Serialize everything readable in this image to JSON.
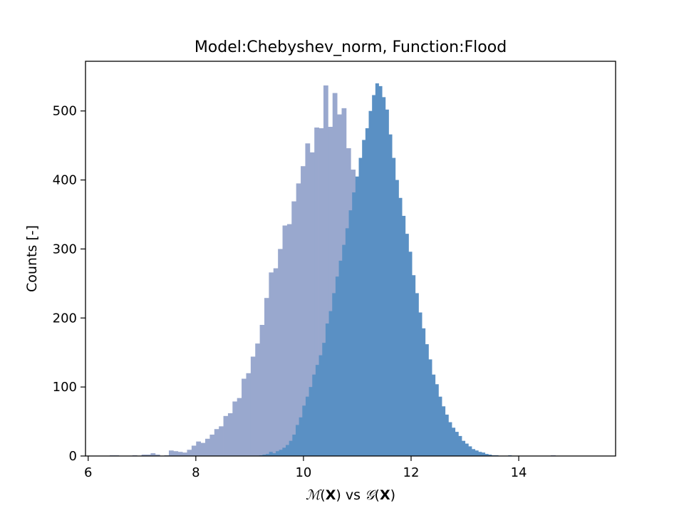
{
  "chart_data": {
    "type": "bar",
    "title": "Model:Chebyshev_norm, Function:Flood",
    "xlabel": {
      "m_symbol": "ℳ",
      "g_symbol": "𝒢",
      "open_paren": "(",
      "var": "X",
      "close_paren": ")",
      "vs": " vs "
    },
    "ylabel": "Counts [-]",
    "xlim": [
      5.95,
      15.8
    ],
    "ylim": [
      0,
      572
    ],
    "xticks": [
      6,
      8,
      10,
      12,
      14
    ],
    "yticks": [
      0,
      100,
      200,
      300,
      400,
      500
    ],
    "grid": false,
    "series": [
      {
        "bin_start": 6.4,
        "bin_width": 0.0845,
        "color": "#99a8ce",
        "values": [
          1,
          1,
          0,
          0,
          0,
          1,
          0,
          2,
          2,
          4,
          2,
          0,
          1,
          8,
          7,
          6,
          5,
          9,
          15,
          21,
          19,
          25,
          31,
          39,
          43,
          58,
          62,
          79,
          84,
          112,
          120,
          144,
          163,
          190,
          229,
          266,
          272,
          300,
          334,
          336,
          369,
          395,
          420,
          453,
          440,
          476,
          475,
          537,
          477,
          526,
          495,
          504,
          446,
          415,
          356,
          358,
          341,
          314,
          289,
          258,
          234,
          212,
          187,
          162,
          141,
          125,
          108,
          87,
          73,
          56,
          39,
          31,
          21,
          16,
          10,
          8,
          4,
          2,
          1,
          1,
          0,
          0,
          0,
          0,
          0,
          0,
          0,
          0,
          0,
          0,
          0,
          0,
          0,
          0,
          0,
          0,
          0,
          1
        ]
      },
      {
        "bin_start": 6.4,
        "bin_width": 0.0617,
        "color": "#5a90c4",
        "values": [
          0,
          0,
          0,
          0,
          0,
          0,
          0,
          0,
          0,
          0,
          0,
          0,
          0,
          0,
          0,
          0,
          0,
          0,
          0,
          0,
          0,
          0,
          0,
          0,
          0,
          0,
          0,
          0,
          0,
          0,
          0,
          0,
          0,
          0,
          0,
          0,
          0,
          0,
          0,
          0,
          0,
          0,
          0,
          0,
          0,
          1,
          2,
          3,
          6,
          4,
          7,
          9,
          12,
          16,
          22,
          31,
          45,
          56,
          73,
          86,
          100,
          118,
          132,
          146,
          164,
          192,
          210,
          236,
          260,
          283,
          306,
          330,
          356,
          382,
          405,
          432,
          458,
          475,
          500,
          523,
          540,
          536,
          520,
          502,
          466,
          432,
          400,
          374,
          348,
          322,
          296,
          262,
          236,
          208,
          185,
          162,
          140,
          118,
          104,
          86,
          72,
          60,
          49,
          41,
          35,
          29,
          22,
          18,
          14,
          10,
          8,
          6,
          5,
          3,
          2,
          1,
          1,
          0,
          0,
          0,
          1
        ]
      }
    ]
  }
}
